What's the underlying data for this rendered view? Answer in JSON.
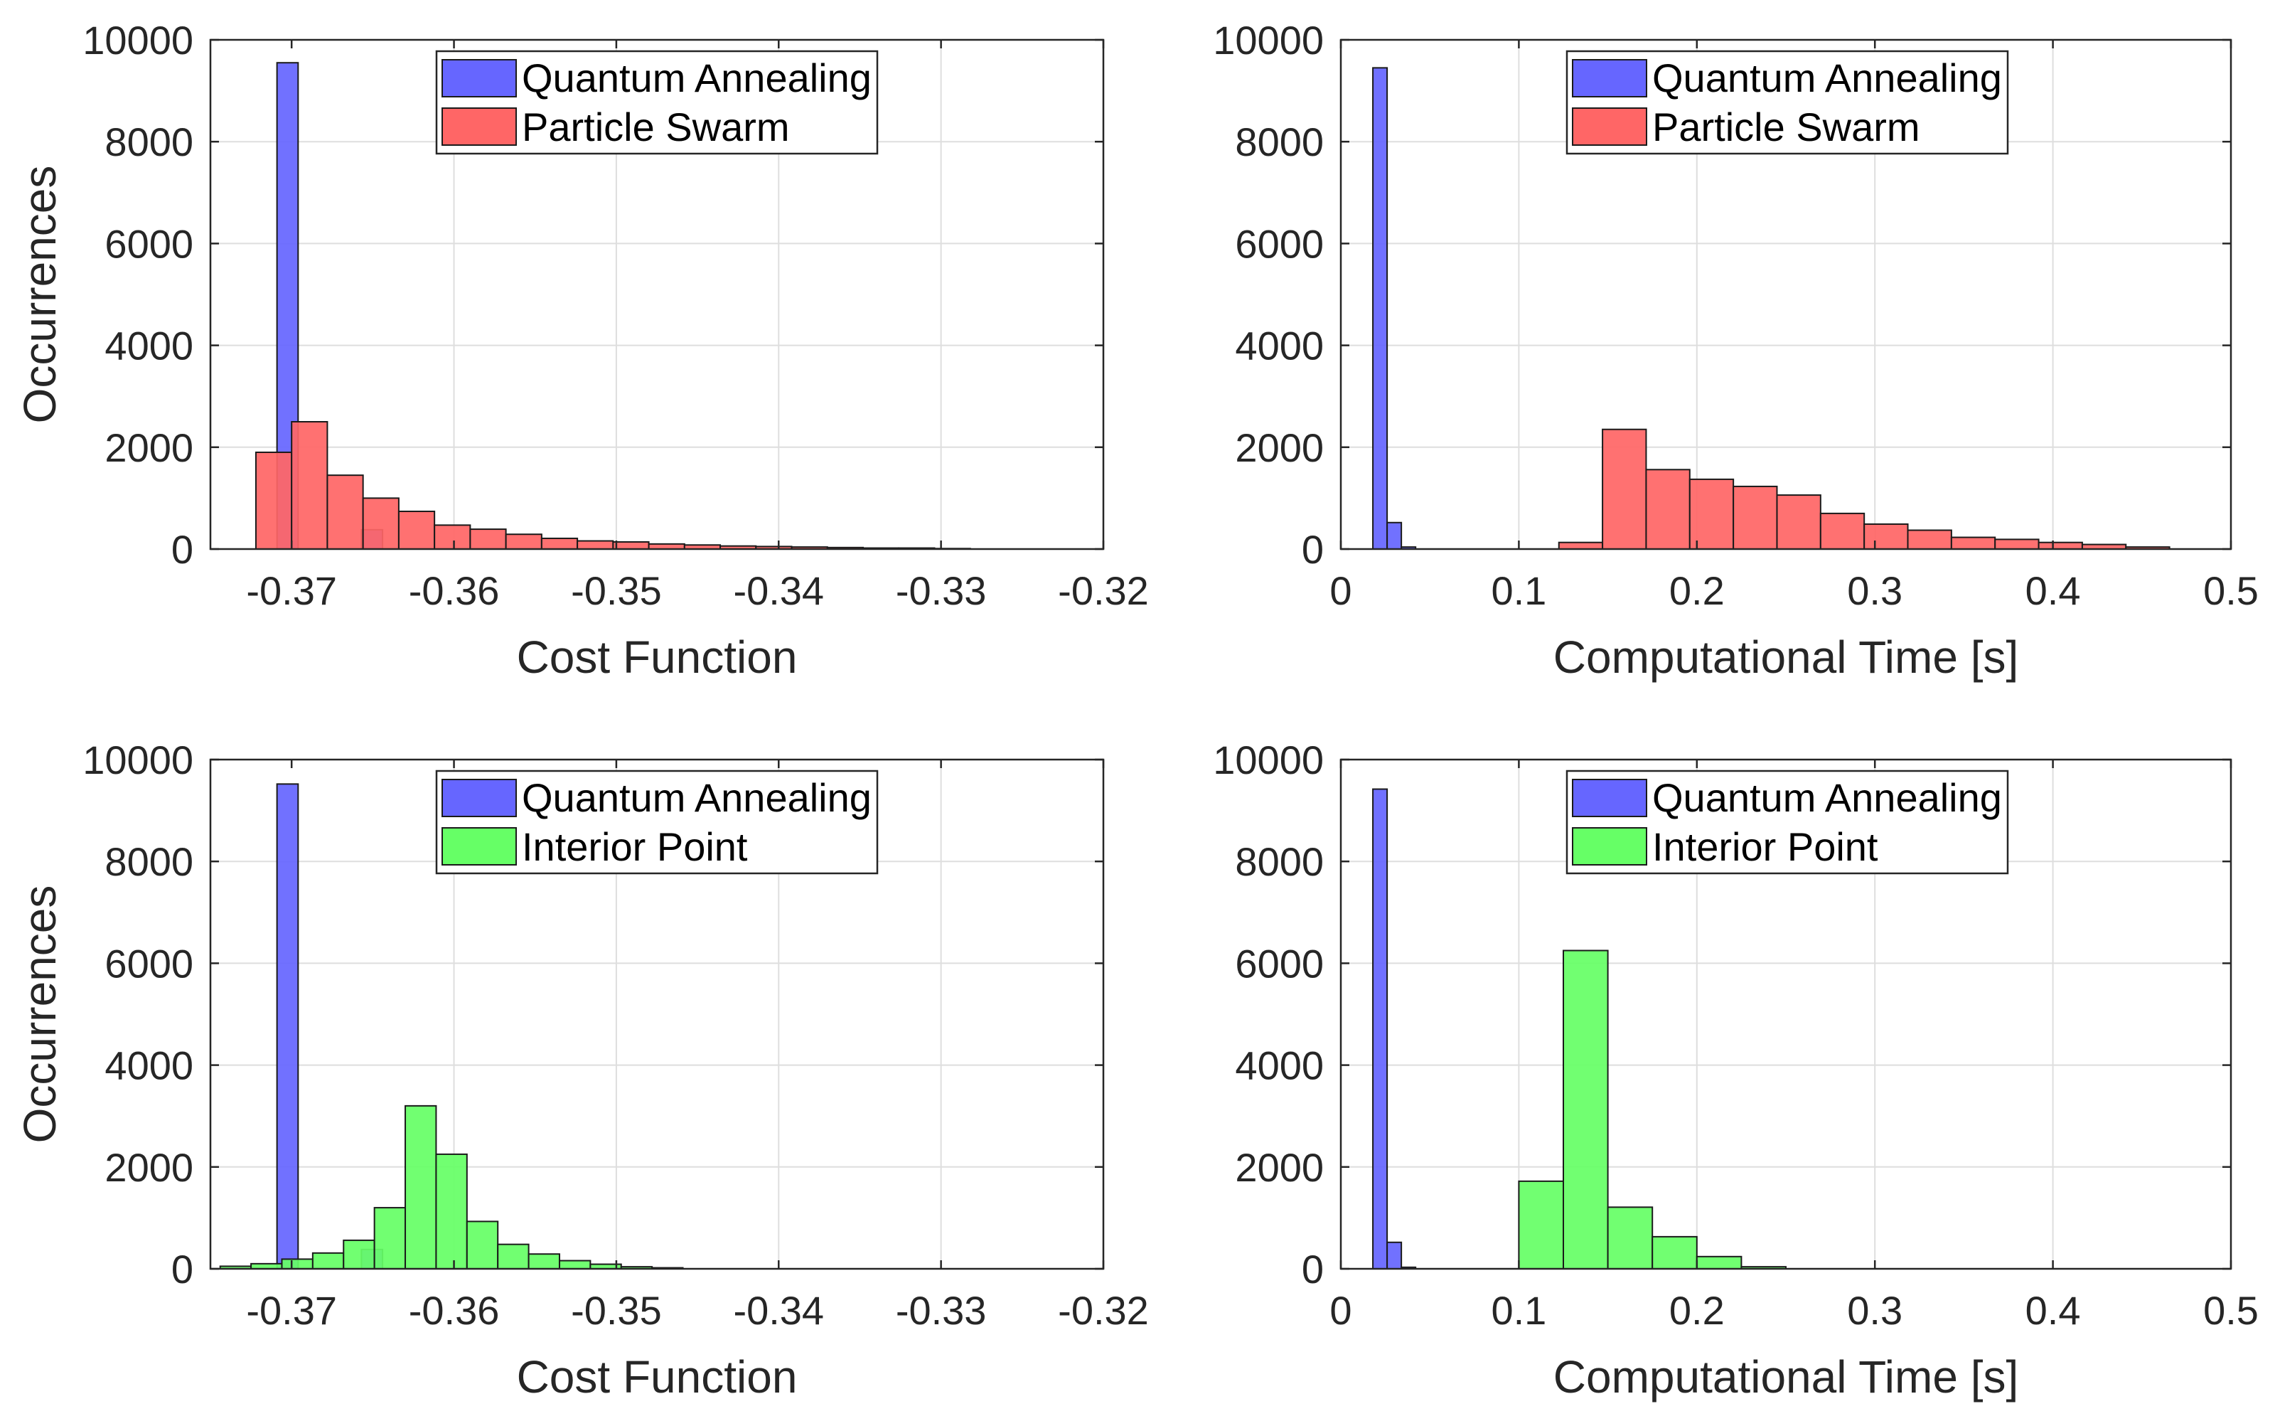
{
  "colors": {
    "quantum": "#6666ff",
    "particle": "#ff6666",
    "interior": "#66ff66",
    "edge": "#1a1a1a",
    "grid": "#dedede",
    "axis": "#262626"
  },
  "chart_data": [
    {
      "type": "bar",
      "title": "",
      "xlabel": "Cost Function",
      "ylabel": "Occurrences",
      "xlim": [
        -0.375,
        -0.32
      ],
      "ylim": [
        0,
        10000
      ],
      "xticks": [
        -0.37,
        -0.36,
        -0.35,
        -0.34,
        -0.33,
        -0.32
      ],
      "xtick_labels": [
        "-0.37",
        "-0.36",
        "-0.35",
        "-0.34",
        "-0.33",
        "-0.32"
      ],
      "yticks": [
        0,
        2000,
        4000,
        6000,
        8000,
        10000
      ],
      "ytick_labels": [
        "0",
        "2000",
        "4000",
        "6000",
        "8000",
        "10000"
      ],
      "legend": [
        "Quantum Annealing",
        "Particle Swarm"
      ],
      "legend_position": "top-center",
      "series": [
        {
          "name": "Quantum Annealing",
          "color_key": "quantum",
          "bins": [
            [
              -0.3709,
              -0.3696,
              9550
            ],
            [
              -0.3657,
              -0.3644,
              380
            ]
          ]
        },
        {
          "name": "Particle Swarm",
          "color_key": "particle",
          "bins": [
            [
              -0.3722,
              -0.37,
              1900
            ],
            [
              -0.37,
              -0.3678,
              2500
            ],
            [
              -0.3678,
              -0.3656,
              1450
            ],
            [
              -0.3656,
              -0.3634,
              1000
            ],
            [
              -0.3634,
              -0.3612,
              740
            ],
            [
              -0.3612,
              -0.359,
              470
            ],
            [
              -0.359,
              -0.3568,
              390
            ],
            [
              -0.3568,
              -0.3546,
              290
            ],
            [
              -0.3546,
              -0.3524,
              210
            ],
            [
              -0.3524,
              -0.3502,
              160
            ],
            [
              -0.3502,
              -0.348,
              140
            ],
            [
              -0.348,
              -0.3458,
              100
            ],
            [
              -0.3458,
              -0.3436,
              80
            ],
            [
              -0.3436,
              -0.3414,
              60
            ],
            [
              -0.3414,
              -0.3392,
              50
            ],
            [
              -0.3392,
              -0.337,
              40
            ],
            [
              -0.337,
              -0.3348,
              30
            ],
            [
              -0.3348,
              -0.3326,
              20
            ],
            [
              -0.3326,
              -0.3304,
              20
            ],
            [
              -0.3304,
              -0.3282,
              10
            ]
          ]
        }
      ]
    },
    {
      "type": "bar",
      "title": "",
      "xlabel": "Computational Time [s]",
      "ylabel": "",
      "xlim": [
        0,
        0.5
      ],
      "ylim": [
        0,
        10000
      ],
      "xticks": [
        0,
        0.1,
        0.2,
        0.3,
        0.4,
        0.5
      ],
      "xtick_labels": [
        "0",
        "0.1",
        "0.2",
        "0.3",
        "0.4",
        "0.5"
      ],
      "yticks": [
        0,
        2000,
        4000,
        6000,
        8000,
        10000
      ],
      "ytick_labels": [
        "0",
        "2000",
        "4000",
        "6000",
        "8000",
        "10000"
      ],
      "legend": [
        "Quantum Annealing",
        "Particle Swarm"
      ],
      "legend_position": "top-center",
      "series": [
        {
          "name": "Quantum Annealing",
          "color_key": "quantum",
          "bins": [
            [
              0.018,
              0.026,
              9450
            ],
            [
              0.026,
              0.034,
              520
            ],
            [
              0.034,
              0.042,
              40
            ]
          ]
        },
        {
          "name": "Particle Swarm",
          "color_key": "particle",
          "bins": [
            [
              0.1225,
              0.147,
              130
            ],
            [
              0.147,
              0.1715,
              2350
            ],
            [
              0.1715,
              0.196,
              1560
            ],
            [
              0.196,
              0.2205,
              1370
            ],
            [
              0.2205,
              0.245,
              1230
            ],
            [
              0.245,
              0.2695,
              1060
            ],
            [
              0.2695,
              0.294,
              700
            ],
            [
              0.294,
              0.3185,
              490
            ],
            [
              0.3185,
              0.343,
              370
            ],
            [
              0.343,
              0.3675,
              230
            ],
            [
              0.3675,
              0.392,
              190
            ],
            [
              0.392,
              0.4165,
              130
            ],
            [
              0.4165,
              0.441,
              90
            ],
            [
              0.441,
              0.4655,
              40
            ]
          ]
        }
      ]
    },
    {
      "type": "bar",
      "title": "",
      "xlabel": "Cost Function",
      "ylabel": "Occurrences",
      "xlim": [
        -0.375,
        -0.32
      ],
      "ylim": [
        0,
        10000
      ],
      "xticks": [
        -0.37,
        -0.36,
        -0.35,
        -0.34,
        -0.33,
        -0.32
      ],
      "xtick_labels": [
        "-0.37",
        "-0.36",
        "-0.35",
        "-0.34",
        "-0.33",
        "-0.32"
      ],
      "yticks": [
        0,
        2000,
        4000,
        6000,
        8000,
        10000
      ],
      "ytick_labels": [
        "0",
        "2000",
        "4000",
        "6000",
        "8000",
        "10000"
      ],
      "legend": [
        "Quantum Annealing",
        "Interior Point"
      ],
      "legend_position": "top-center",
      "series": [
        {
          "name": "Quantum Annealing",
          "color_key": "quantum",
          "bins": [
            [
              -0.3709,
              -0.3696,
              9520
            ],
            [
              -0.3657,
              -0.3644,
              380
            ]
          ]
        },
        {
          "name": "Interior Point",
          "color_key": "interior",
          "bins": [
            [
              -0.3744,
              -0.3725,
              50
            ],
            [
              -0.3725,
              -0.3706,
              100
            ],
            [
              -0.3706,
              -0.3687,
              190
            ],
            [
              -0.3687,
              -0.3668,
              310
            ],
            [
              -0.3668,
              -0.3649,
              560
            ],
            [
              -0.3649,
              -0.363,
              1200
            ],
            [
              -0.363,
              -0.3611,
              3200
            ],
            [
              -0.3611,
              -0.3592,
              2250
            ],
            [
              -0.3592,
              -0.3573,
              930
            ],
            [
              -0.3573,
              -0.3554,
              480
            ],
            [
              -0.3554,
              -0.3535,
              290
            ],
            [
              -0.3535,
              -0.3516,
              160
            ],
            [
              -0.3516,
              -0.3497,
              90
            ],
            [
              -0.3497,
              -0.3478,
              40
            ],
            [
              -0.3478,
              -0.3459,
              20
            ]
          ]
        }
      ]
    },
    {
      "type": "bar",
      "title": "",
      "xlabel": "Computational Time [s]",
      "ylabel": "",
      "xlim": [
        0,
        0.5
      ],
      "ylim": [
        0,
        10000
      ],
      "xticks": [
        0,
        0.1,
        0.2,
        0.3,
        0.4,
        0.5
      ],
      "xtick_labels": [
        "0",
        "0.1",
        "0.2",
        "0.3",
        "0.4",
        "0.5"
      ],
      "yticks": [
        0,
        2000,
        4000,
        6000,
        8000,
        10000
      ],
      "ytick_labels": [
        "0",
        "2000",
        "4000",
        "6000",
        "8000",
        "10000"
      ],
      "legend": [
        "Quantum Annealing",
        "Interior Point"
      ],
      "legend_position": "top-center",
      "series": [
        {
          "name": "Quantum Annealing",
          "color_key": "quantum",
          "bins": [
            [
              0.018,
              0.026,
              9420
            ],
            [
              0.026,
              0.034,
              520
            ],
            [
              0.034,
              0.042,
              30
            ]
          ]
        },
        {
          "name": "Interior Point",
          "color_key": "interior",
          "bins": [
            [
              0.1,
              0.125,
              1720
            ],
            [
              0.125,
              0.15,
              6250
            ],
            [
              0.15,
              0.175,
              1210
            ],
            [
              0.175,
              0.2,
              630
            ],
            [
              0.2,
              0.225,
              240
            ],
            [
              0.225,
              0.25,
              40
            ]
          ]
        }
      ]
    }
  ]
}
